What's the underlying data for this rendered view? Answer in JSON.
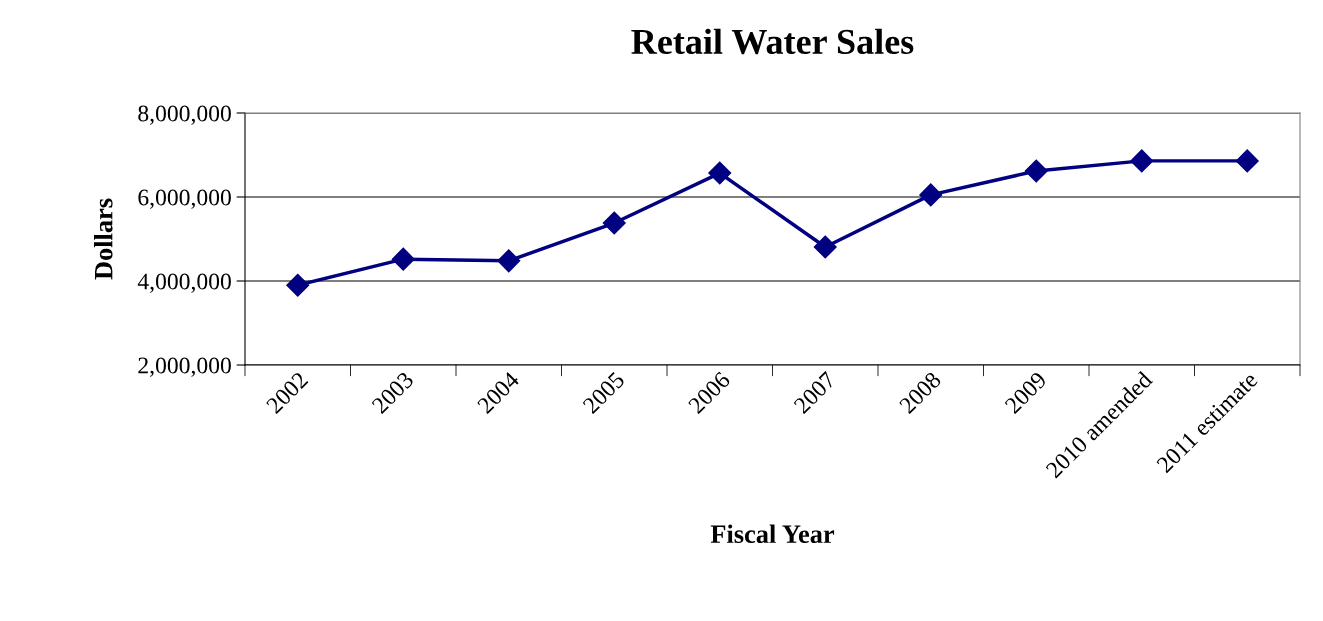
{
  "chart_data": {
    "type": "line",
    "title": "Retail Water Sales",
    "xlabel": "Fiscal Year",
    "ylabel": "Dollars",
    "categories": [
      "2002",
      "2003",
      "2004",
      "2005",
      "2006",
      "2007",
      "2008",
      "2009",
      "2010 amended",
      "2011 estimate"
    ],
    "series": [
      {
        "color": "#000080",
        "values": [
          3900000,
          4520000,
          4480000,
          5380000,
          6570000,
          4810000,
          6050000,
          6620000,
          6860000,
          6860000
        ]
      }
    ],
    "ylim": [
      2000000,
      8000000
    ],
    "yticks": [
      {
        "value": 2000000,
        "label": "2,000,000"
      },
      {
        "value": 4000000,
        "label": "4,000,000"
      },
      {
        "value": 6000000,
        "label": "6,000,000"
      },
      {
        "value": 8000000,
        "label": "8,000,000"
      }
    ],
    "grid": "y",
    "marker": "diamond",
    "line_style": "solid"
  }
}
